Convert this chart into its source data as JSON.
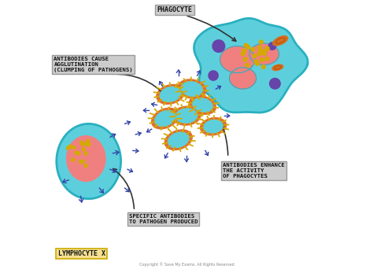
{
  "bg_color": "#ffffff",
  "title": "",
  "labels": {
    "phagocyte": "PHAGOCYTE",
    "agglutination": "ANTIBODIES CAUSE\nAGGLUTINATION\n(CLUMPING OF PATHOGENS)",
    "enhance": "ANTIBODIES ENHANCE\nTHE ACTIVITY\nOF PHAGOCYTES",
    "specific": "SPECIFIC ANTIBODIES\nTO PATHOGEN PRODUCED",
    "lymphocyte": "LYMPHOCYTE X",
    "copyright": "Copyright © Save My Exams. All Rights Reserved"
  },
  "colors": {
    "cyan_cell": "#5dcfdc",
    "pink_nucleus": "#f08080",
    "dark_cyan_border": "#2ab0c0",
    "antibody_blue": "#3344aa",
    "pathogen_outer": "#e07030",
    "pathogen_inner": "#5dcfdc",
    "gold_dots": "#d4aa00",
    "purple_circle": "#6644aa",
    "orange_ellipse": "#d47020",
    "label_box_bg": "#cccccc",
    "lymphocyte_label_bg": "#f5e090",
    "arrow_color": "#333333",
    "label_border": "#999999"
  }
}
